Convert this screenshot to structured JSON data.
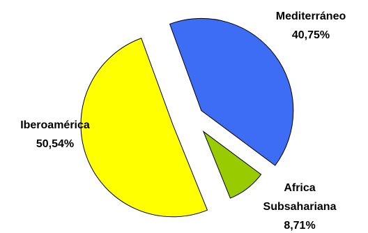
{
  "chart_data": {
    "type": "pie",
    "exploded": true,
    "slices": [
      {
        "label": "Mediterráneo",
        "value": 40.75,
        "value_label": "40,75%",
        "color": "#3e6df5"
      },
      {
        "label": "Africa Subsahariana",
        "label_lines": [
          "Africa",
          "Subsahariana"
        ],
        "value": 8.71,
        "value_label": "8,71%",
        "color": "#99cc00"
      },
      {
        "label": "Iberoamérica",
        "value": 50.54,
        "value_label": "50,54%",
        "color": "#ffff00"
      }
    ]
  }
}
